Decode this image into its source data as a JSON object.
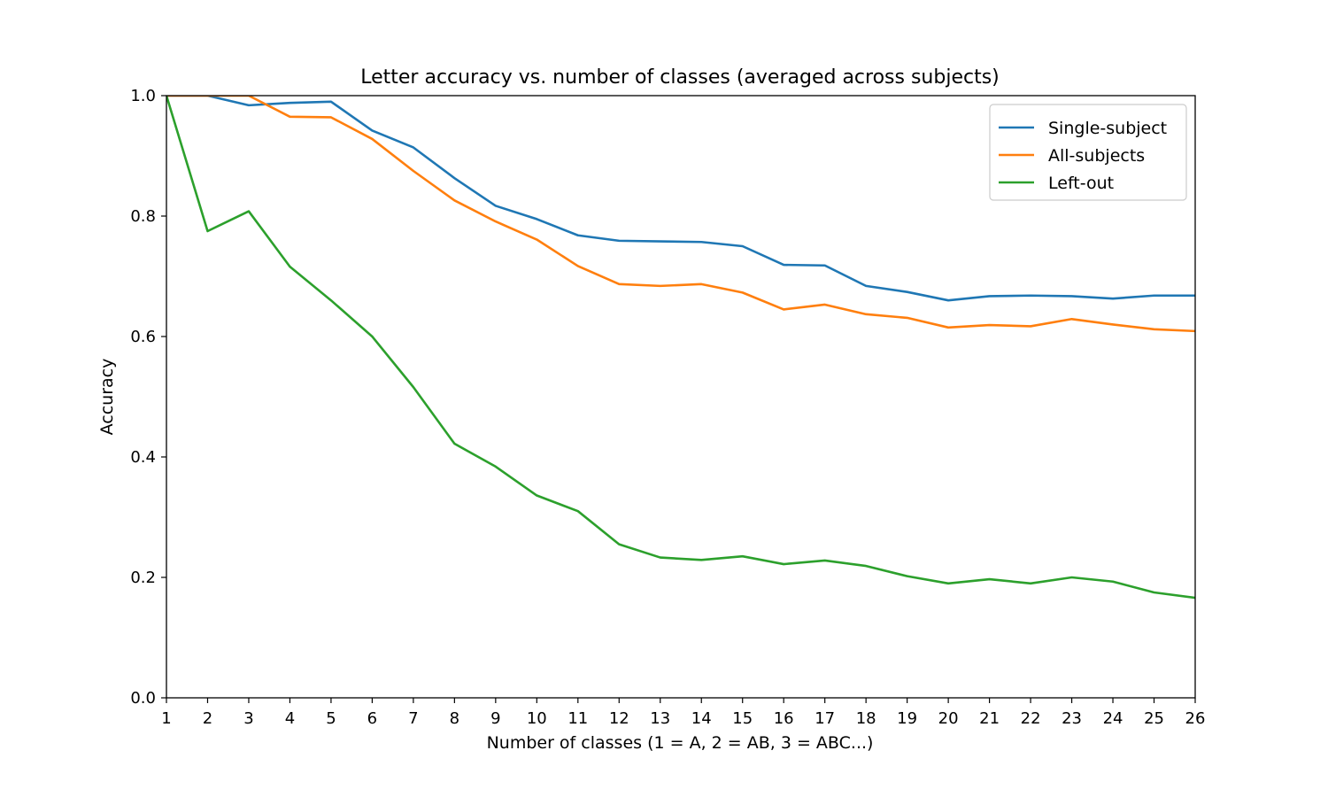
{
  "chart_data": {
    "type": "line",
    "title": "Letter accuracy vs. number of classes (averaged across subjects)",
    "xlabel": "Number of classes (1 = A, 2 = AB, 3 = ABC...)",
    "ylabel": "Accuracy",
    "xlim": [
      1,
      26
    ],
    "ylim": [
      0.0,
      1.0
    ],
    "x": [
      1,
      2,
      3,
      4,
      5,
      6,
      7,
      8,
      9,
      10,
      11,
      12,
      13,
      14,
      15,
      16,
      17,
      18,
      19,
      20,
      21,
      22,
      23,
      24,
      25,
      26
    ],
    "x_tick_labels": [
      "1",
      "2",
      "3",
      "4",
      "5",
      "6",
      "7",
      "8",
      "9",
      "10",
      "11",
      "12",
      "13",
      "14",
      "15",
      "16",
      "17",
      "18",
      "19",
      "20",
      "21",
      "22",
      "23",
      "24",
      "25",
      "26"
    ],
    "y_ticks": [
      0.0,
      0.2,
      0.4,
      0.6,
      0.8,
      1.0
    ],
    "y_tick_labels": [
      "0.0",
      "0.2",
      "0.4",
      "0.6",
      "0.8",
      "1.0"
    ],
    "grid": false,
    "legend_position": "top-right",
    "series": [
      {
        "name": "Single-subject",
        "color": "#1f77b4",
        "values": [
          1.0,
          1.0,
          0.984,
          0.988,
          0.99,
          0.942,
          0.914,
          0.863,
          0.817,
          0.795,
          0.768,
          0.759,
          0.758,
          0.757,
          0.75,
          0.719,
          0.718,
          0.684,
          0.674,
          0.66,
          0.667,
          0.668,
          0.667,
          0.663,
          0.668,
          0.668
        ]
      },
      {
        "name": "All-subjects",
        "color": "#ff7f0e",
        "values": [
          1.0,
          1.0,
          1.0,
          0.965,
          0.964,
          0.928,
          0.875,
          0.826,
          0.791,
          0.761,
          0.717,
          0.687,
          0.684,
          0.687,
          0.673,
          0.645,
          0.653,
          0.637,
          0.631,
          0.615,
          0.619,
          0.617,
          0.629,
          0.62,
          0.612,
          0.609
        ]
      },
      {
        "name": "Left-out",
        "color": "#2ca02c",
        "values": [
          1.0,
          0.775,
          0.808,
          0.716,
          0.66,
          0.6,
          0.516,
          0.422,
          0.384,
          0.336,
          0.31,
          0.255,
          0.233,
          0.229,
          0.235,
          0.222,
          0.228,
          0.219,
          0.202,
          0.19,
          0.197,
          0.19,
          0.2,
          0.193,
          0.175,
          0.166
        ]
      }
    ]
  }
}
